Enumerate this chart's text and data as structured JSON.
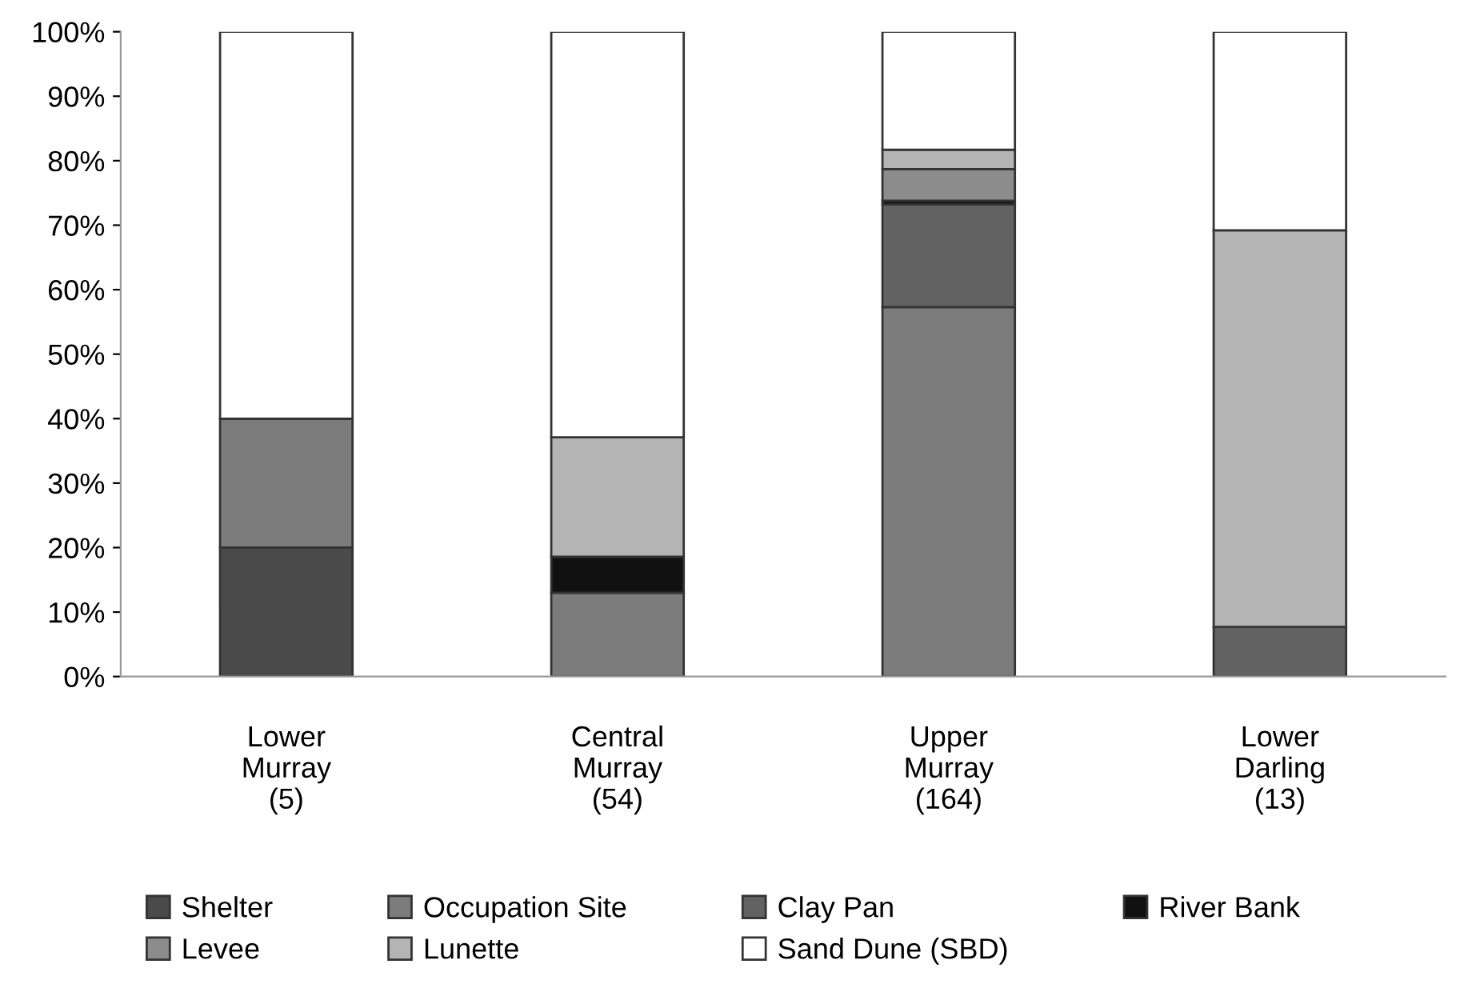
{
  "chart_data": {
    "type": "bar",
    "stacked": true,
    "categories": [
      "Lower\nMurray\n(5)",
      "Central\nMurray\n(54)",
      "Upper\nMurray\n(164)",
      "Lower\nDarling\n(13)"
    ],
    "series": [
      {
        "name": "Shelter",
        "color": "#4a4a4a",
        "values": [
          20,
          0,
          0,
          0
        ]
      },
      {
        "name": "Occupation Site",
        "color": "#7c7c7c",
        "values": [
          20,
          13.0,
          57.3,
          0
        ]
      },
      {
        "name": "Clay Pan",
        "color": "#626262",
        "values": [
          0,
          0,
          15.9,
          7.7
        ]
      },
      {
        "name": "River Bank",
        "color": "#111111",
        "values": [
          0,
          5.6,
          0.6,
          0
        ]
      },
      {
        "name": "Levee",
        "color": "#8c8c8c",
        "values": [
          0,
          0,
          4.9,
          0
        ]
      },
      {
        "name": "Lunette",
        "color": "#b4b4b4",
        "values": [
          0,
          18.5,
          3.0,
          61.5
        ]
      },
      {
        "name": "Sand Dune (SBD)",
        "color": "#ffffff",
        "values": [
          60,
          62.9,
          18.3,
          30.8
        ]
      }
    ],
    "ylim": [
      0,
      100
    ],
    "yticks": [
      {
        "value": 0,
        "label": "0%"
      },
      {
        "value": 10,
        "label": "10%"
      },
      {
        "value": 20,
        "label": "20%"
      },
      {
        "value": 30,
        "label": "30%"
      },
      {
        "value": 40,
        "label": "40%"
      },
      {
        "value": 50,
        "label": "50%"
      },
      {
        "value": 60,
        "label": "60%"
      },
      {
        "value": 70,
        "label": "70%"
      },
      {
        "value": 80,
        "label": "80%"
      },
      {
        "value": 90,
        "label": "90%"
      },
      {
        "value": 100,
        "label": "100%"
      }
    ],
    "grid": false,
    "legend": "bottom"
  }
}
